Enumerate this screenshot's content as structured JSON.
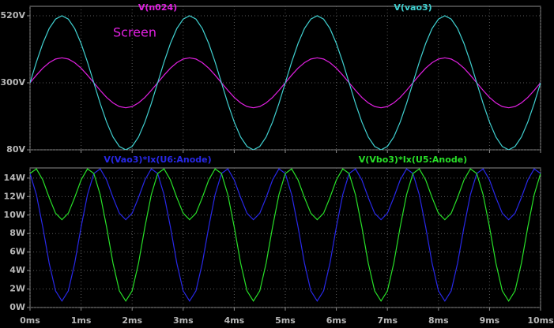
{
  "chart_data": [
    {
      "type": "line",
      "annotation": "Screen",
      "annotation_color": "#e020e0",
      "grid": true,
      "xlim": [
        0,
        10
      ],
      "ylim": [
        80,
        551
      ],
      "yticks": [
        {
          "value": 80,
          "label": "80V"
        },
        {
          "value": 300,
          "label": "300V"
        },
        {
          "value": 520,
          "label": "520V"
        }
      ],
      "x": [
        0,
        0.125,
        0.25,
        0.375,
        0.5,
        0.625,
        0.75,
        0.875,
        1,
        1.125,
        1.25,
        1.375,
        1.5,
        1.625,
        1.75,
        1.875,
        2,
        2.125,
        2.25,
        2.375,
        2.5,
        2.625,
        2.75,
        2.875,
        3,
        3.125,
        3.25,
        3.375,
        3.5,
        3.625,
        3.75,
        3.875,
        4,
        4.125,
        4.25,
        4.375,
        4.5,
        4.625,
        4.75,
        4.875,
        5,
        5.125,
        5.25,
        5.375,
        5.5,
        5.625,
        5.75,
        5.875,
        6,
        6.125,
        6.25,
        6.375,
        6.5,
        6.625,
        6.75,
        6.875,
        7,
        7.125,
        7.25,
        7.375,
        7.5,
        7.625,
        7.75,
        7.875,
        8,
        8.125,
        8.25,
        8.375,
        8.5,
        8.625,
        8.75,
        8.875,
        9,
        9.125,
        9.25,
        9.375,
        9.5,
        9.625,
        9.75,
        9.875,
        10
      ],
      "series": [
        {
          "name": "V(n024)",
          "color": "#e020e0",
          "values": [
            300,
            325,
            348,
            366,
            378,
            382,
            378,
            366,
            348,
            325,
            300,
            275,
            252,
            234,
            222,
            218,
            222,
            234,
            252,
            275,
            300,
            325,
            348,
            366,
            378,
            382,
            378,
            366,
            348,
            325,
            300,
            275,
            252,
            234,
            222,
            218,
            222,
            234,
            252,
            275,
            300,
            325,
            348,
            366,
            378,
            382,
            378,
            366,
            348,
            325,
            300,
            275,
            252,
            234,
            222,
            218,
            222,
            234,
            252,
            275,
            300,
            325,
            348,
            366,
            378,
            382,
            378,
            366,
            348,
            325,
            300,
            275,
            252,
            234,
            222,
            218,
            222,
            234,
            252,
            275,
            300
          ]
        },
        {
          "name": "V(vao3)",
          "color": "#40d0d0",
          "values": [
            300,
            368,
            429,
            478,
            509,
            520,
            509,
            478,
            429,
            368,
            300,
            232,
            171,
            122,
            91,
            80,
            91,
            122,
            171,
            232,
            300,
            368,
            429,
            478,
            509,
            520,
            509,
            478,
            429,
            368,
            300,
            232,
            171,
            122,
            91,
            80,
            91,
            122,
            171,
            232,
            300,
            368,
            429,
            478,
            509,
            520,
            509,
            478,
            429,
            368,
            300,
            232,
            171,
            122,
            91,
            80,
            91,
            122,
            171,
            232,
            300,
            368,
            429,
            478,
            509,
            520,
            509,
            478,
            429,
            368,
            300,
            232,
            171,
            122,
            91,
            80,
            91,
            122,
            171,
            232,
            300
          ]
        }
      ]
    },
    {
      "type": "line",
      "grid": true,
      "xlim": [
        0,
        10
      ],
      "xticks": [
        {
          "value": 0,
          "label": "0ms"
        },
        {
          "value": 1,
          "label": "1ms"
        },
        {
          "value": 2,
          "label": "2ms"
        },
        {
          "value": 3,
          "label": "3ms"
        },
        {
          "value": 4,
          "label": "4ms"
        },
        {
          "value": 5,
          "label": "5ms"
        },
        {
          "value": 6,
          "label": "6ms"
        },
        {
          "value": 7,
          "label": "7ms"
        },
        {
          "value": 8,
          "label": "8ms"
        },
        {
          "value": 9,
          "label": "9ms"
        },
        {
          "value": 10,
          "label": "10ms"
        }
      ],
      "ylim": [
        0,
        15.1
      ],
      "yticks": [
        {
          "value": 0,
          "label": "0W"
        },
        {
          "value": 2,
          "label": "2W"
        },
        {
          "value": 4,
          "label": "4W"
        },
        {
          "value": 6,
          "label": "6W"
        },
        {
          "value": 8,
          "label": "8W"
        },
        {
          "value": 10,
          "label": "10W"
        },
        {
          "value": 12,
          "label": "12W"
        },
        {
          "value": 14,
          "label": "14W"
        }
      ],
      "x": [
        0,
        0.125,
        0.25,
        0.375,
        0.5,
        0.625,
        0.75,
        0.875,
        1,
        1.125,
        1.25,
        1.375,
        1.5,
        1.625,
        1.75,
        1.875,
        2,
        2.125,
        2.25,
        2.375,
        2.5,
        2.625,
        2.75,
        2.875,
        3,
        3.125,
        3.25,
        3.375,
        3.5,
        3.625,
        3.75,
        3.875,
        4,
        4.125,
        4.25,
        4.375,
        4.5,
        4.625,
        4.75,
        4.875,
        5,
        5.125,
        5.25,
        5.375,
        5.5,
        5.625,
        5.75,
        5.875,
        6,
        6.125,
        6.25,
        6.375,
        6.5,
        6.625,
        6.75,
        6.875,
        7,
        7.125,
        7.25,
        7.375,
        7.5,
        7.625,
        7.75,
        7.875,
        8,
        8.125,
        8.25,
        8.375,
        8.5,
        8.625,
        8.75,
        8.875,
        9,
        9.125,
        9.25,
        9.375,
        9.5,
        9.625,
        9.75,
        9.875,
        10
      ],
      "series": [
        {
          "name": "V(Vao3)*Ix(U6:Anode)",
          "color": "#2828e8",
          "values": [
            14.5,
            12.2,
            8.7,
            4.8,
            1.8,
            0.7,
            1.8,
            4.8,
            8.7,
            12.2,
            14.5,
            15,
            13.8,
            11.9,
            10.2,
            9.5,
            10.2,
            11.9,
            13.8,
            15,
            14.5,
            12.2,
            8.7,
            4.8,
            1.8,
            0.7,
            1.8,
            4.8,
            8.7,
            12.2,
            14.5,
            15,
            13.8,
            11.9,
            10.2,
            9.5,
            10.2,
            11.9,
            13.8,
            15,
            14.5,
            12.2,
            8.7,
            4.8,
            1.8,
            0.7,
            1.8,
            4.8,
            8.7,
            12.2,
            14.5,
            15,
            13.8,
            11.9,
            10.2,
            9.5,
            10.2,
            11.9,
            13.8,
            15,
            14.5,
            12.2,
            8.7,
            4.8,
            1.8,
            0.7,
            1.8,
            4.8,
            8.7,
            12.2,
            14.5,
            15,
            13.8,
            11.9,
            10.2,
            9.5,
            10.2,
            11.9,
            13.8,
            15,
            14.5
          ]
        },
        {
          "name": "V(Vbo3)*Ix(U5:Anode)",
          "color": "#28e028",
          "values": [
            14.5,
            15,
            13.8,
            11.9,
            10.2,
            9.5,
            10.2,
            11.9,
            13.8,
            15,
            14.5,
            12.2,
            8.7,
            4.8,
            1.8,
            0.7,
            1.8,
            4.8,
            8.7,
            12.2,
            14.5,
            15,
            13.8,
            11.9,
            10.2,
            9.5,
            10.2,
            11.9,
            13.8,
            15,
            14.5,
            12.2,
            8.7,
            4.8,
            1.8,
            0.7,
            1.8,
            4.8,
            8.7,
            12.2,
            14.5,
            15,
            13.8,
            11.9,
            10.2,
            9.5,
            10.2,
            11.9,
            13.8,
            15,
            14.5,
            12.2,
            8.7,
            4.8,
            1.8,
            0.7,
            1.8,
            4.8,
            8.7,
            12.2,
            14.5,
            15,
            13.8,
            11.9,
            10.2,
            9.5,
            10.2,
            11.9,
            13.8,
            15,
            14.5,
            12.2,
            8.7,
            4.8,
            1.8,
            0.7,
            1.8,
            4.8,
            8.7,
            12.2,
            14.5
          ]
        }
      ]
    }
  ]
}
